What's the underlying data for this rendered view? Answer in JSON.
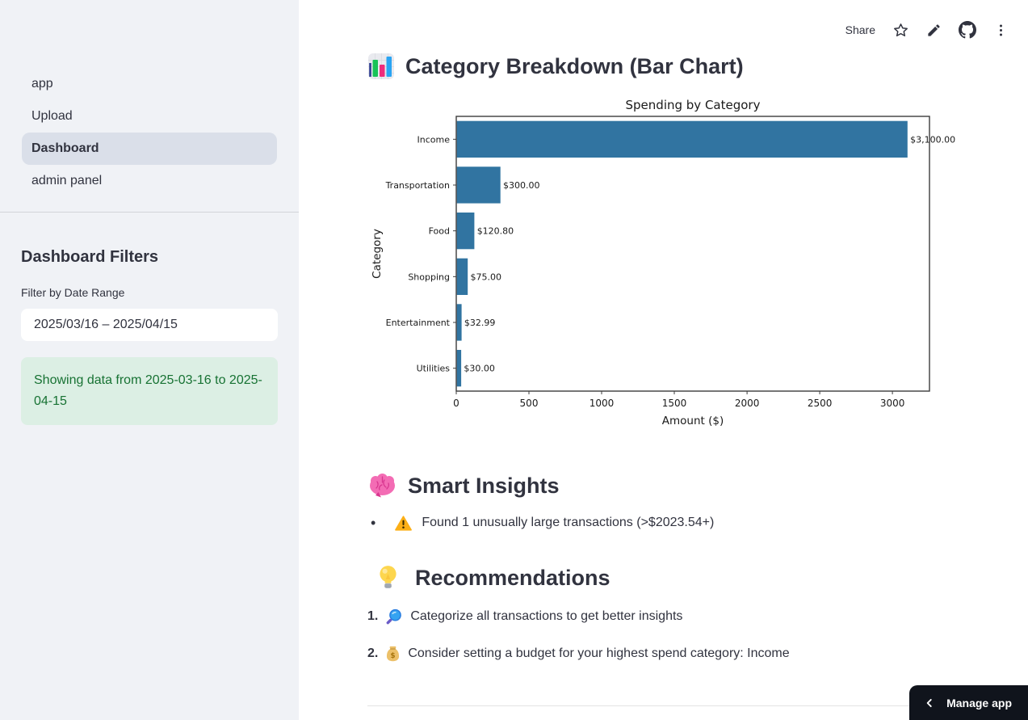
{
  "sidebar": {
    "nav": [
      {
        "label": "app",
        "selected": false
      },
      {
        "label": "Upload",
        "selected": false
      },
      {
        "label": "Dashboard",
        "selected": true
      },
      {
        "label": "admin panel",
        "selected": false
      }
    ],
    "filters_title": "Dashboard Filters",
    "date_filter_label": "Filter by Date Range",
    "date_range_value": "2025/03/16 – 2025/04/15",
    "success_message": "Showing data from 2025-03-16 to 2025-04-15"
  },
  "toolbar": {
    "share_label": "Share",
    "icons": [
      "star-icon",
      "edit-icon",
      "github-icon",
      "overflow-menu-icon"
    ]
  },
  "main": {
    "chart_section": {
      "icon": "bar-chart-emoji",
      "title": "Category Breakdown (Bar Chart)"
    },
    "insights": {
      "icon": "brain-emoji",
      "title": "Smart Insights",
      "items": [
        {
          "icon": "warning-icon",
          "text": "Found 1 unusually large transactions (>$2023.54+)"
        }
      ]
    },
    "recommendations": {
      "icon": "light-bulb-emoji",
      "title": "Recommendations",
      "items": [
        {
          "number": "1.",
          "icon": "magnifier-icon",
          "text": "Categorize all transactions to get better insights"
        },
        {
          "number": "2.",
          "icon": "money-bag-icon",
          "text": "Consider setting a budget for your highest spend category: Income"
        }
      ]
    }
  },
  "footer": {
    "manage_app_label": "Manage app"
  },
  "colors": {
    "sidebar_bg": "#f0f2f6",
    "selected_nav_bg": "#dadfe9",
    "success_bg": "#dcefe4",
    "success_text": "#177233",
    "text": "#31333f",
    "manage_app_bg": "#10141c",
    "chart_bar": "#3174a1"
  },
  "chart_data": {
    "type": "bar",
    "orientation": "horizontal",
    "title": "Spending by Category",
    "xlabel": "Amount ($)",
    "ylabel": "Category",
    "categories": [
      "Income",
      "Transportation",
      "Food",
      "Shopping",
      "Entertainment",
      "Utilities"
    ],
    "values": [
      3100.0,
      300.0,
      120.8,
      75.0,
      32.99,
      30.0
    ],
    "value_labels": [
      "$3,100.00",
      "$300.00",
      "$120.80",
      "$75.00",
      "$32.99",
      "$30.00"
    ],
    "x_ticks": [
      0,
      500,
      1000,
      1500,
      2000,
      2500,
      3000
    ],
    "xlim": [
      0,
      3255
    ],
    "bar_color": "#3174a1",
    "grid": false,
    "legend": null
  }
}
